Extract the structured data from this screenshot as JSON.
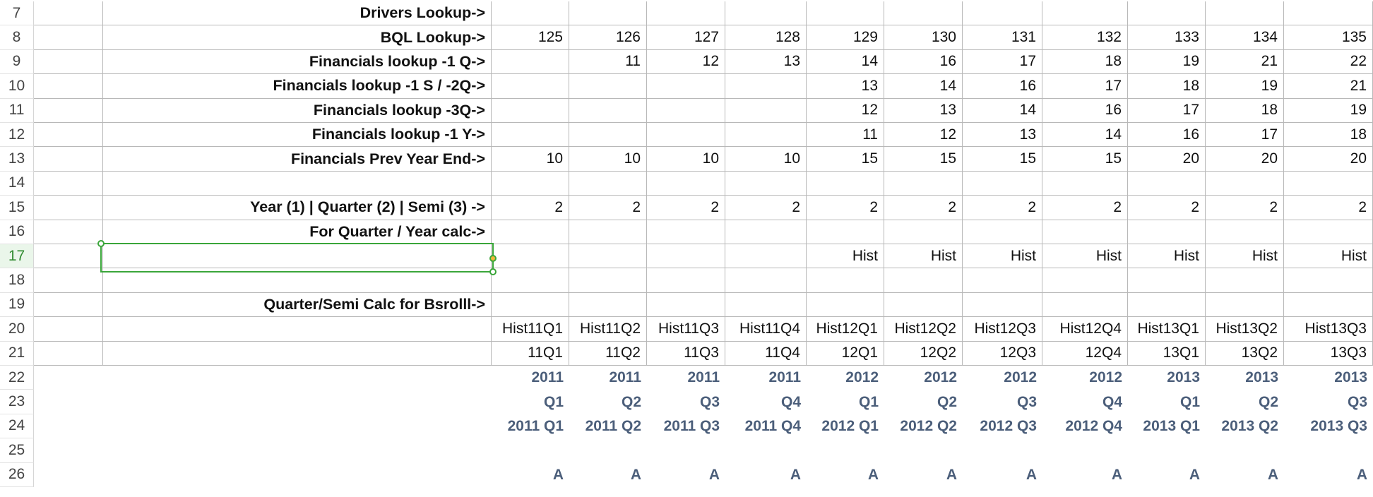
{
  "rows": [
    {
      "num": "7",
      "grid": true,
      "label": "Drivers Lookup->",
      "cells": [
        "",
        "",
        "",
        "",
        "",
        "",
        "",
        "",
        "",
        "",
        ""
      ]
    },
    {
      "num": "8",
      "grid": true,
      "label": "BQL Lookup->",
      "cells": [
        "125",
        "126",
        "127",
        "128",
        "129",
        "130",
        "131",
        "132",
        "133",
        "134",
        "135"
      ]
    },
    {
      "num": "9",
      "grid": true,
      "label": "Financials lookup -1 Q->",
      "cells": [
        "",
        "11",
        "12",
        "13",
        "14",
        "16",
        "17",
        "18",
        "19",
        "21",
        "22"
      ]
    },
    {
      "num": "10",
      "grid": true,
      "label": "Financials lookup -1 S / -2Q->",
      "cells": [
        "",
        "",
        "",
        "",
        "13",
        "14",
        "16",
        "17",
        "18",
        "19",
        "21"
      ]
    },
    {
      "num": "11",
      "grid": true,
      "label": "Financials lookup -3Q->",
      "cells": [
        "",
        "",
        "",
        "",
        "12",
        "13",
        "14",
        "16",
        "17",
        "18",
        "19"
      ]
    },
    {
      "num": "12",
      "grid": true,
      "label": "Financials lookup -1 Y->",
      "cells": [
        "",
        "",
        "",
        "",
        "11",
        "12",
        "13",
        "14",
        "16",
        "17",
        "18"
      ]
    },
    {
      "num": "13",
      "grid": true,
      "label": "Financials Prev Year End->",
      "cells": [
        "10",
        "10",
        "10",
        "10",
        "15",
        "15",
        "15",
        "15",
        "20",
        "20",
        "20"
      ]
    },
    {
      "num": "14",
      "grid": true,
      "label": "",
      "cells": [
        "",
        "",
        "",
        "",
        "",
        "",
        "",
        "",
        "",
        "",
        ""
      ]
    },
    {
      "num": "15",
      "grid": true,
      "label": "Year (1) | Quarter (2) | Semi (3) ->",
      "cells": [
        "2",
        "2",
        "2",
        "2",
        "2",
        "2",
        "2",
        "2",
        "2",
        "2",
        "2"
      ]
    },
    {
      "num": "16",
      "grid": true,
      "label": "For Quarter / Year calc->",
      "cells": [
        "",
        "",
        "",
        "",
        "",
        "",
        "",
        "",
        "",
        "",
        ""
      ]
    },
    {
      "num": "17",
      "grid": true,
      "active": true,
      "label": "",
      "cells": [
        "",
        "",
        "",
        "",
        "Hist",
        "Hist",
        "Hist",
        "Hist",
        "Hist",
        "Hist",
        "Hist"
      ]
    },
    {
      "num": "18",
      "grid": true,
      "label": "",
      "cells": [
        "",
        "",
        "",
        "",
        "",
        "",
        "",
        "",
        "",
        "",
        ""
      ]
    },
    {
      "num": "19",
      "grid": true,
      "label": "Quarter/Semi Calc for Bsrolll->",
      "cells": [
        "",
        "",
        "",
        "",
        "",
        "",
        "",
        "",
        "",
        "",
        ""
      ]
    },
    {
      "num": "20",
      "grid": true,
      "label": "",
      "cells": [
        "Hist11Q1",
        "Hist11Q2",
        "Hist11Q3",
        "Hist11Q4",
        "Hist12Q1",
        "Hist12Q2",
        "Hist12Q3",
        "Hist12Q4",
        "Hist13Q1",
        "Hist13Q2",
        "Hist13Q3"
      ]
    },
    {
      "num": "21",
      "grid": true,
      "label": "",
      "cells": [
        "11Q1",
        "11Q2",
        "11Q3",
        "11Q4",
        "12Q1",
        "12Q2",
        "12Q3",
        "12Q4",
        "13Q1",
        "13Q2",
        "13Q3"
      ]
    },
    {
      "num": "22",
      "grid": false,
      "blue": true,
      "label": "",
      "cells": [
        "2011",
        "2011",
        "2011",
        "2011",
        "2012",
        "2012",
        "2012",
        "2012",
        "2013",
        "2013",
        "2013"
      ]
    },
    {
      "num": "23",
      "grid": false,
      "blue": true,
      "label": "",
      "cells": [
        "Q1",
        "Q2",
        "Q3",
        "Q4",
        "Q1",
        "Q2",
        "Q3",
        "Q4",
        "Q1",
        "Q2",
        "Q3"
      ]
    },
    {
      "num": "24",
      "grid": false,
      "blue": true,
      "label": "",
      "cells": [
        "2011 Q1",
        "2011 Q2",
        "2011 Q3",
        "2011 Q4",
        "2012 Q1",
        "2012 Q2",
        "2012 Q3",
        "2012 Q4",
        "2013 Q1",
        "2013 Q2",
        "2013 Q3"
      ]
    },
    {
      "num": "25",
      "grid": false,
      "label": "",
      "cells": [
        "",
        "",
        "",
        "",
        "",
        "",
        "",
        "",
        "",
        "",
        ""
      ]
    },
    {
      "num": "26",
      "grid": false,
      "blue": true,
      "label": "",
      "cells": [
        "A",
        "A",
        "A",
        "A",
        "A",
        "A",
        "A",
        "A",
        "A",
        "A",
        "A"
      ]
    }
  ],
  "colors": {
    "selection": "#3aa63a",
    "header_blue": "#4b5e7a"
  }
}
